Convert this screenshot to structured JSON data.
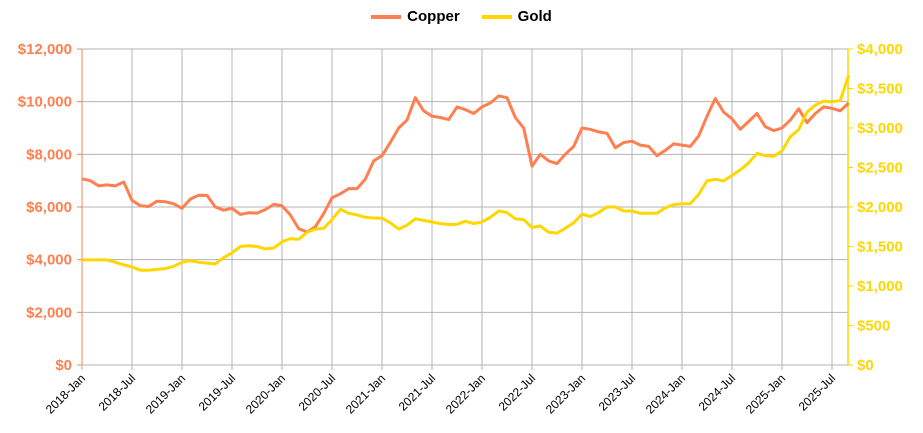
{
  "legend": {
    "items": [
      {
        "label": "Copper",
        "color": "#ff7f50"
      },
      {
        "label": "Gold",
        "color": "#ffd700"
      }
    ]
  },
  "chart_data": {
    "type": "line",
    "title": "",
    "legend_position": "top",
    "grid": true,
    "x_tick_labels": [
      "2018-Jan",
      "2018-Jul",
      "2019-Jan",
      "2019-Jul",
      "2020-Jan",
      "2020-Jul",
      "2021-Jan",
      "2021-Jul",
      "2022-Jan",
      "2022-Jul",
      "2023-Jan",
      "2023-Jul",
      "2024-Jan",
      "2024-Jul",
      "2025-Jan",
      "2025-Jul"
    ],
    "x_start": "2018-Jan",
    "x_end": "2025-Sep",
    "y_left": {
      "label": "",
      "min": 0,
      "max": 12000,
      "step": 2000,
      "color": "#ff7f50",
      "tick_labels": [
        "$0",
        "$2,000",
        "$4,000",
        "$6,000",
        "$8,000",
        "$10,000",
        "$12,000"
      ]
    },
    "y_right": {
      "label": "",
      "min": 0,
      "max": 4000,
      "step": 500,
      "color": "#ffd700",
      "tick_labels": [
        "$0",
        "$500",
        "$1,000",
        "$1,500",
        "$2,000",
        "$2,500",
        "$3,000",
        "$3,500",
        "$4,000"
      ]
    },
    "series": [
      {
        "name": "Copper",
        "axis": "left",
        "color": "#ff7f50",
        "values": [
          7070,
          7000,
          6800,
          6840,
          6800,
          6950,
          6250,
          6050,
          6020,
          6220,
          6200,
          6120,
          5950,
          6300,
          6450,
          6440,
          6000,
          5880,
          5950,
          5720,
          5780,
          5770,
          5900,
          6100,
          6050,
          5700,
          5180,
          5050,
          5250,
          5750,
          6350,
          6500,
          6700,
          6700,
          7050,
          7750,
          7950,
          8450,
          9000,
          9300,
          10150,
          9650,
          9450,
          9400,
          9320,
          9800,
          9700,
          9550,
          9800,
          9950,
          10220,
          10150,
          9400,
          9000,
          7550,
          8000,
          7750,
          7650,
          8000,
          8300,
          9000,
          8950,
          8850,
          8800,
          8250,
          8450,
          8500,
          8350,
          8300,
          7950,
          8150,
          8400,
          8350,
          8300,
          8700,
          9450,
          10120,
          9600,
          9350,
          8950,
          9250,
          9550,
          9050,
          8900,
          9000,
          9300,
          9730,
          9200,
          9550,
          9800,
          9750,
          9650,
          9950
        ]
      },
      {
        "name": "Gold",
        "axis": "right",
        "color": "#ffd700",
        "values": [
          1330,
          1330,
          1330,
          1330,
          1300,
          1270,
          1240,
          1200,
          1200,
          1210,
          1220,
          1250,
          1300,
          1320,
          1300,
          1290,
          1280,
          1360,
          1420,
          1500,
          1510,
          1500,
          1470,
          1480,
          1560,
          1600,
          1590,
          1680,
          1720,
          1730,
          1840,
          1970,
          1920,
          1900,
          1870,
          1860,
          1860,
          1800,
          1720,
          1770,
          1850,
          1830,
          1810,
          1790,
          1780,
          1780,
          1820,
          1790,
          1810,
          1870,
          1950,
          1930,
          1850,
          1840,
          1740,
          1760,
          1680,
          1670,
          1730,
          1800,
          1910,
          1880,
          1930,
          2000,
          2000,
          1950,
          1950,
          1920,
          1920,
          1920,
          1990,
          2030,
          2040,
          2040,
          2160,
          2330,
          2350,
          2330,
          2400,
          2470,
          2560,
          2680,
          2650,
          2640,
          2710,
          2890,
          2980,
          3200,
          3290,
          3340,
          3330,
          3350,
          3670
        ]
      }
    ]
  }
}
